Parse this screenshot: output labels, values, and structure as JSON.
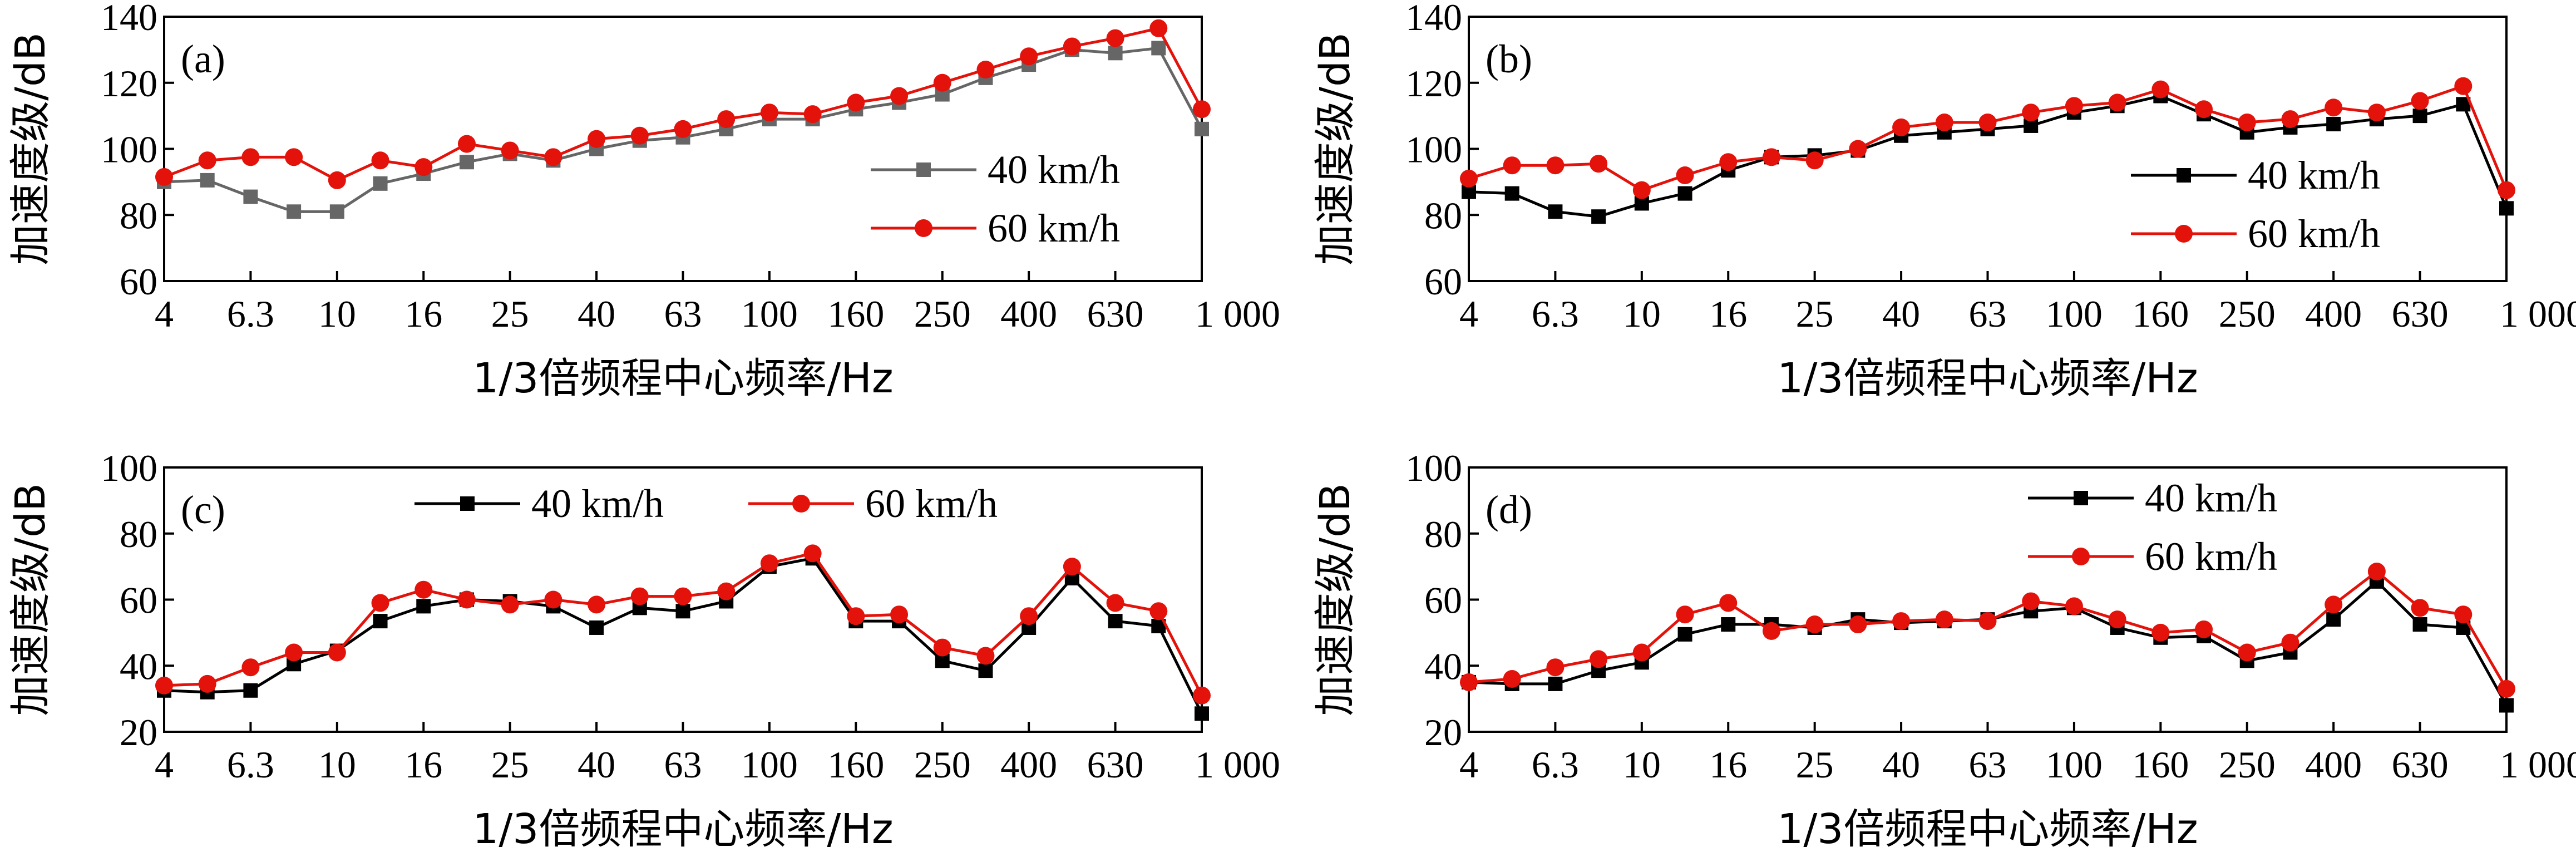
{
  "chart_data": [
    {
      "type": "line",
      "panel_label": "(a)",
      "xlabel": "1/3倍频程中心频率/Hz",
      "ylabel": "加速度级/dB",
      "ylim": [
        60,
        140
      ],
      "yticks": [
        "60",
        "80",
        "100",
        "120",
        "140"
      ],
      "x_tick_labels": [
        "4",
        "6.3",
        "10",
        "16",
        "25",
        "40",
        "63",
        "100",
        "160",
        "250",
        "400",
        "630",
        "1 000"
      ],
      "legend": "right-middle",
      "series": [
        {
          "name": "40 km/h",
          "color": "#666666",
          "marker": "square",
          "values": [
            90,
            90.5,
            85.5,
            81,
            81,
            89.5,
            92.5,
            96,
            98.5,
            96.5,
            100,
            102.5,
            103.5,
            106,
            109,
            109,
            112,
            114,
            116.5,
            121.5,
            125.5,
            130,
            129,
            130.5,
            106
          ]
        },
        {
          "name": "60 km/h",
          "color": "#e3120b",
          "marker": "circle",
          "values": [
            91.5,
            96.5,
            97.5,
            97.5,
            90.5,
            96.5,
            94.5,
            101.5,
            99.5,
            97.5,
            103,
            104,
            106,
            109,
            111,
            110.5,
            114,
            116,
            120,
            124,
            128,
            131,
            133.5,
            136.5,
            112
          ]
        }
      ]
    },
    {
      "type": "line",
      "panel_label": "(b)",
      "xlabel": "1/3倍频程中心频率/Hz",
      "ylabel": "加速度级/dB",
      "ylim": [
        60,
        140
      ],
      "yticks": [
        "60",
        "80",
        "100",
        "120",
        "140"
      ],
      "x_tick_labels": [
        "4",
        "6.3",
        "10",
        "16",
        "25",
        "40",
        "63",
        "100",
        "160",
        "250",
        "400",
        "630",
        "1 000"
      ],
      "legend": "right-middle",
      "series": [
        {
          "name": "40 km/h",
          "color": "#000000",
          "marker": "square",
          "values": [
            87,
            86.5,
            81,
            79.5,
            83.5,
            86.5,
            93.5,
            97.5,
            98,
            99.5,
            104,
            105,
            106,
            107,
            111,
            113,
            116,
            110.5,
            105,
            106.5,
            107.5,
            109,
            110,
            113.5,
            82
          ]
        },
        {
          "name": "60 km/h",
          "color": "#e3120b",
          "marker": "circle",
          "values": [
            91,
            95,
            95,
            95.5,
            87.5,
            92,
            96,
            97.5,
            96.5,
            100,
            106.5,
            108,
            108,
            111,
            113,
            114,
            118,
            112,
            108,
            109,
            112.5,
            111,
            114.5,
            119,
            87.5
          ]
        }
      ]
    },
    {
      "type": "line",
      "panel_label": "(c)",
      "xlabel": "1/3倍频程中心频率/Hz",
      "ylabel": "加速度级/dB",
      "ylim": [
        20,
        100
      ],
      "yticks": [
        "20",
        "40",
        "60",
        "80",
        "100"
      ],
      "x_tick_labels": [
        "4",
        "6.3",
        "10",
        "16",
        "25",
        "40",
        "63",
        "100",
        "160",
        "250",
        "400",
        "630",
        "1 000"
      ],
      "legend": "top",
      "series": [
        {
          "name": "40 km/h",
          "color": "#000000",
          "marker": "square",
          "values": [
            32.5,
            32,
            32.5,
            40.5,
            44.5,
            53.5,
            58,
            60,
            59.5,
            58,
            51.5,
            57.5,
            56.5,
            59.5,
            70,
            72.5,
            53.5,
            53.5,
            41.5,
            38.5,
            51.5,
            66.5,
            53.5,
            52,
            25.5
          ]
        },
        {
          "name": "60 km/h",
          "color": "#e3120b",
          "marker": "circle",
          "values": [
            34,
            34.5,
            39.5,
            44,
            44,
            59,
            63,
            60,
            58.5,
            60,
            58.5,
            61,
            61,
            62.5,
            71,
            74,
            55,
            55.5,
            45.5,
            43,
            55,
            70,
            59,
            56.5,
            31
          ]
        }
      ]
    },
    {
      "type": "line",
      "panel_label": "(d)",
      "xlabel": "1/3倍频程中心频率/Hz",
      "ylabel": "加速度级/dB",
      "ylim": [
        20,
        100
      ],
      "yticks": [
        "20",
        "40",
        "60",
        "80",
        "100"
      ],
      "x_tick_labels": [
        "4",
        "6.3",
        "10",
        "16",
        "25",
        "40",
        "63",
        "100",
        "160",
        "250",
        "400",
        "630",
        "1 000"
      ],
      "legend": "top-right",
      "series": [
        {
          "name": "40 km/h",
          "color": "#000000",
          "marker": "square",
          "values": [
            35,
            34.5,
            34.5,
            38.5,
            41,
            49.5,
            52.5,
            52.5,
            51.5,
            54,
            53,
            53.5,
            54,
            56.5,
            57.5,
            51.5,
            48.5,
            49,
            41.5,
            44,
            54,
            65.5,
            52.5,
            51.5,
            28
          ]
        },
        {
          "name": "60 km/h",
          "color": "#e3120b",
          "marker": "circle",
          "values": [
            35,
            36,
            39.5,
            42,
            44,
            55.5,
            59,
            50.5,
            52.5,
            52.5,
            53.5,
            54,
            53.5,
            59.5,
            58,
            54,
            50,
            51,
            44,
            47,
            58.5,
            68.5,
            57.5,
            55.5,
            33
          ]
        }
      ]
    }
  ]
}
